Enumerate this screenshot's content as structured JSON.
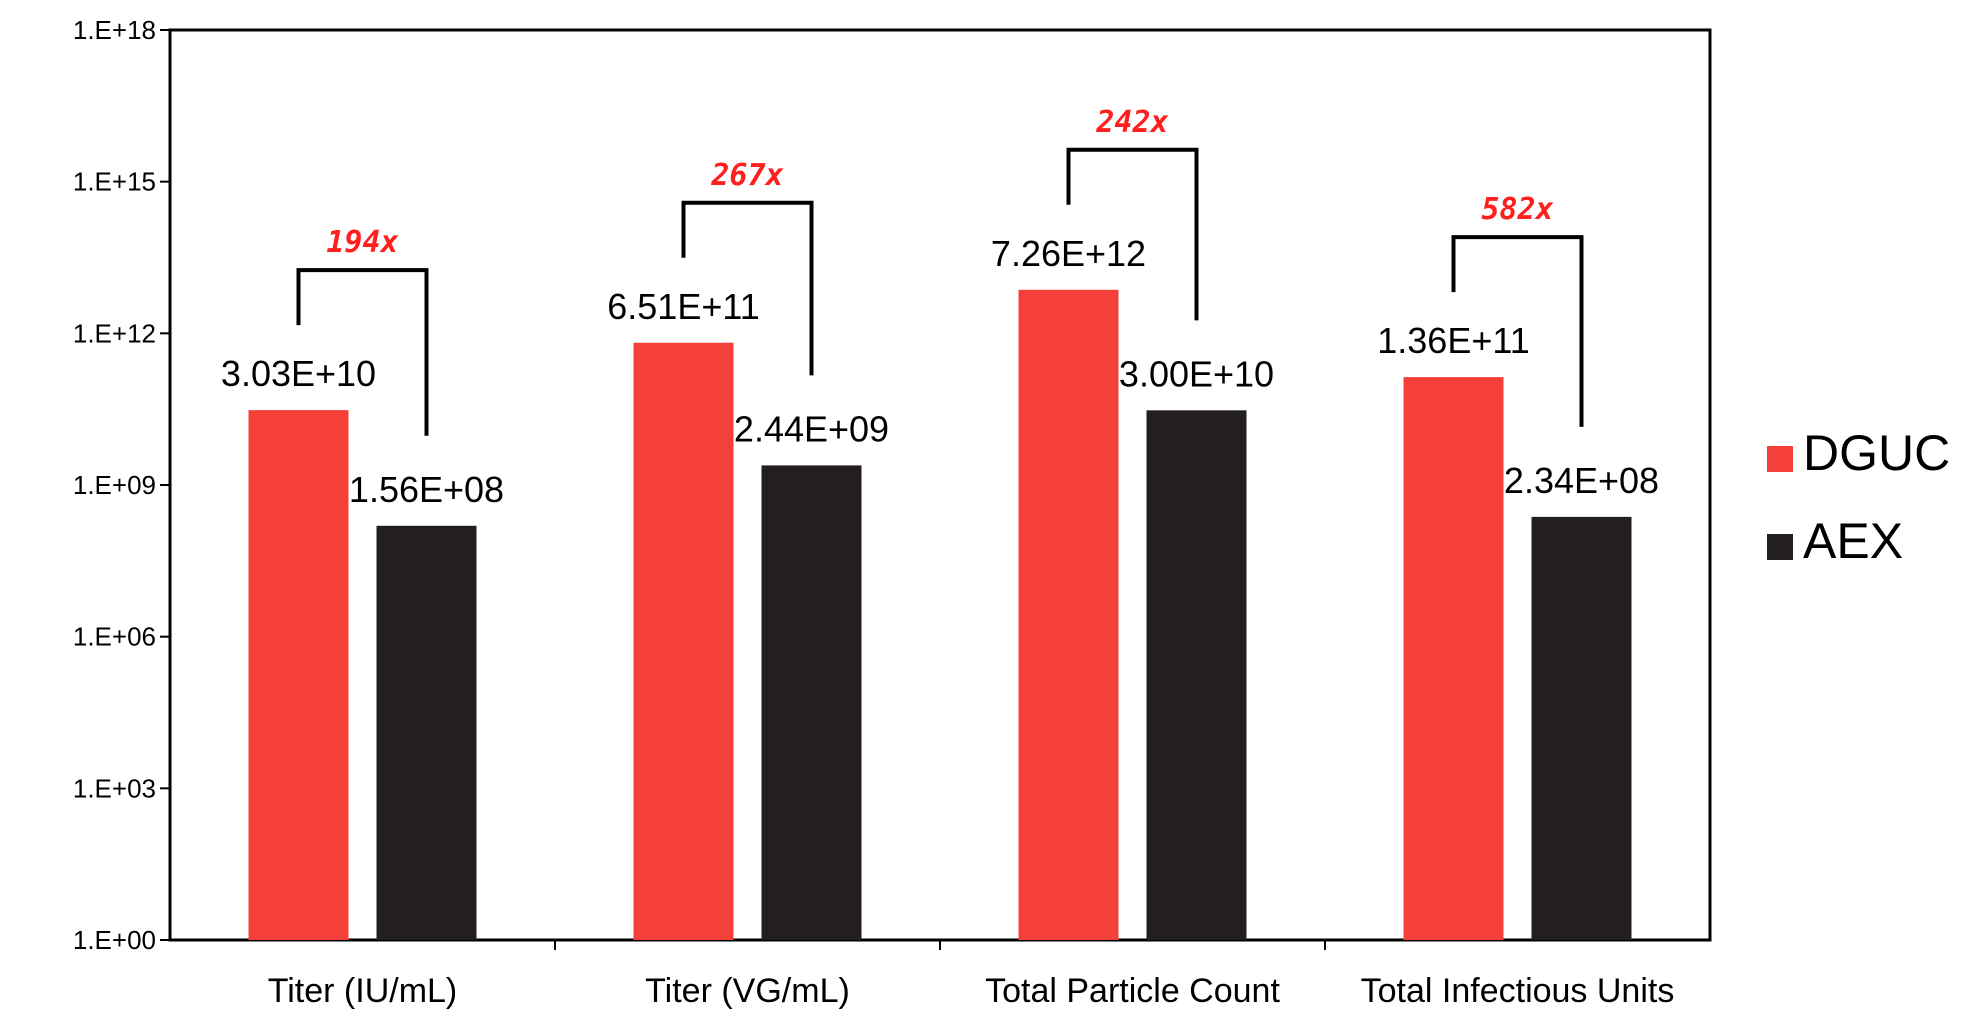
{
  "chart_data": {
    "type": "bar",
    "yscale": "log",
    "ylim": [
      1,
      1e+18
    ],
    "ytick_values": [
      1,
      1000.0,
      1000000.0,
      1000000000.0,
      1000000000000.0,
      1000000000000000.0,
      1e+18
    ],
    "ytick_labels": [
      "1.E+00",
      "1.E+03",
      "1.E+06",
      "1.E+09",
      "1.E+12",
      "1.E+15",
      "1.E+18"
    ],
    "categories": [
      "Titer (IU/mL)",
      "Titer (VG/mL)",
      "Total Particle Count",
      "Total Infectious Units"
    ],
    "series": [
      {
        "name": "DGUC",
        "color": "#f5403a",
        "values": [
          30300000000.0,
          651000000000.0,
          7260000000000.0,
          136000000000.0
        ],
        "labels": [
          "3.03E+10",
          "6.51E+11",
          "7.26E+12",
          "1.36E+11"
        ]
      },
      {
        "name": "AEX",
        "color": "#231f20",
        "values": [
          156000000.0,
          2440000000.0,
          30000000000.0,
          234000000.0
        ],
        "labels": [
          "1.56E+08",
          "2.44E+09",
          "3.00E+10",
          "2.34E+08"
        ]
      }
    ],
    "annotations": [
      "194x",
      "267x",
      "242x",
      "582x"
    ],
    "annotation_color": "#ff1f1f",
    "legend_position": "right",
    "grid": false
  }
}
